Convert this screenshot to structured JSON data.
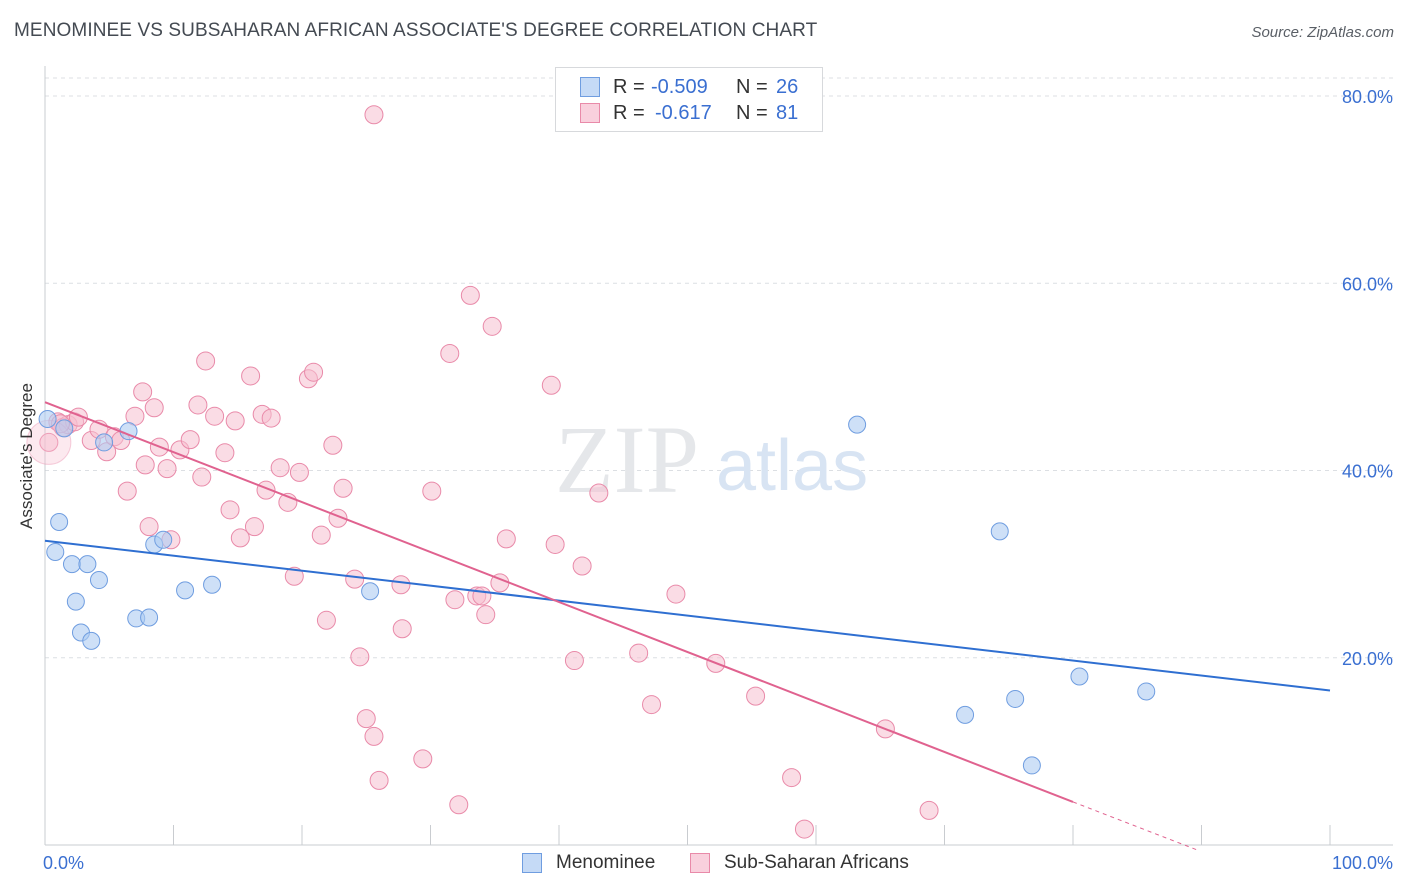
{
  "title": "MENOMINEE VS SUBSAHARAN AFRICAN ASSOCIATE'S DEGREE CORRELATION CHART",
  "source": "Source: ZipAtlas.com",
  "watermark": {
    "zip": "ZIP",
    "atlas": "atlas"
  },
  "legend": {
    "rows": [
      {
        "r_label": "R =",
        "r_value": "-0.509",
        "n_label": "N =",
        "n_value": "26"
      },
      {
        "r_label": "R =",
        "r_value": "-0.617",
        "n_label": "N =",
        "n_value": "81"
      }
    ]
  },
  "bottom_legend": {
    "series1": "Menominee",
    "series2": "Sub-Saharan Africans"
  },
  "colors": {
    "blue_fill": "#aecbf2",
    "blue_stroke": "#6f9de0",
    "blue_line": "#2f6fd1",
    "pink_fill": "#f6bfd0",
    "pink_stroke": "#e98aa9",
    "pink_line": "#e0628f",
    "axis_label": "#3a6fd1",
    "grid": "#dcdfe3"
  },
  "chart_data": {
    "type": "scatter",
    "title": "MENOMINEE VS SUBSAHARAN AFRICAN ASSOCIATE'S DEGREE CORRELATION CHART",
    "xlabel": "",
    "ylabel": "Associate's Degree",
    "xlim": [
      0,
      100
    ],
    "ylim": [
      0,
      80
    ],
    "x_tick_labels": [
      "0.0%",
      "100.0%"
    ],
    "y_tick_labels": [
      "20.0%",
      "40.0%",
      "60.0%",
      "80.0%"
    ],
    "y_ticks": [
      20,
      40,
      60,
      80
    ],
    "grid": true,
    "legend_position": "top-center",
    "series": [
      {
        "name": "Menominee",
        "color": "#2f6fd1",
        "trend": {
          "x": [
            0,
            100
          ],
          "y": [
            32.5,
            16.5
          ]
        },
        "points": [
          [
            0.2,
            45.5
          ],
          [
            0.8,
            31.3
          ],
          [
            1.1,
            34.5
          ],
          [
            2.1,
            30.0
          ],
          [
            2.4,
            26.0
          ],
          [
            2.8,
            22.7
          ],
          [
            3.3,
            30.0
          ],
          [
            3.6,
            21.8
          ],
          [
            4.2,
            28.3
          ],
          [
            4.6,
            43.0
          ],
          [
            6.5,
            44.2
          ],
          [
            7.1,
            24.2
          ],
          [
            8.1,
            24.3
          ],
          [
            8.5,
            32.1
          ],
          [
            9.2,
            32.6
          ],
          [
            10.9,
            27.2
          ],
          [
            13.0,
            27.8
          ],
          [
            25.3,
            27.1
          ],
          [
            63.2,
            44.9
          ],
          [
            71.6,
            13.9
          ],
          [
            74.3,
            33.5
          ],
          [
            75.5,
            15.6
          ],
          [
            76.8,
            8.5
          ],
          [
            80.5,
            18.0
          ],
          [
            85.7,
            16.4
          ],
          [
            1.5,
            44.5
          ]
        ]
      },
      {
        "name": "Sub-Saharan Africans",
        "color": "#e0628f",
        "trend": {
          "x": [
            0,
            80
          ],
          "y": [
            47.3,
            4.6
          ]
        },
        "trend_dashed": {
          "x": [
            80,
            89.8
          ],
          "y": [
            4.6,
            -0.6
          ]
        },
        "points": [
          [
            0.3,
            43.0
          ],
          [
            1.0,
            45.2
          ],
          [
            1.4,
            44.6
          ],
          [
            1.8,
            44.9
          ],
          [
            2.3,
            45.2
          ],
          [
            2.6,
            45.7
          ],
          [
            3.6,
            43.2
          ],
          [
            4.2,
            44.4
          ],
          [
            4.8,
            42.0
          ],
          [
            5.4,
            43.6
          ],
          [
            5.9,
            43.2
          ],
          [
            6.4,
            37.8
          ],
          [
            7.0,
            45.8
          ],
          [
            7.6,
            48.4
          ],
          [
            7.8,
            40.6
          ],
          [
            8.1,
            34.0
          ],
          [
            8.5,
            46.7
          ],
          [
            8.9,
            42.5
          ],
          [
            9.5,
            40.2
          ],
          [
            9.8,
            32.6
          ],
          [
            10.5,
            42.2
          ],
          [
            11.3,
            43.3
          ],
          [
            11.9,
            47.0
          ],
          [
            12.2,
            39.3
          ],
          [
            12.5,
            51.7
          ],
          [
            13.2,
            45.8
          ],
          [
            14.0,
            41.9
          ],
          [
            14.4,
            35.8
          ],
          [
            14.8,
            45.3
          ],
          [
            15.2,
            32.8
          ],
          [
            16.0,
            50.1
          ],
          [
            16.3,
            34.0
          ],
          [
            16.9,
            46.0
          ],
          [
            17.2,
            37.9
          ],
          [
            17.6,
            45.6
          ],
          [
            18.3,
            40.3
          ],
          [
            18.9,
            36.6
          ],
          [
            19.4,
            28.7
          ],
          [
            19.8,
            39.8
          ],
          [
            20.5,
            49.8
          ],
          [
            20.9,
            50.5
          ],
          [
            21.5,
            33.1
          ],
          [
            21.9,
            24.0
          ],
          [
            22.4,
            42.7
          ],
          [
            22.8,
            34.9
          ],
          [
            23.2,
            38.1
          ],
          [
            24.1,
            28.4
          ],
          [
            24.5,
            20.1
          ],
          [
            25.0,
            13.5
          ],
          [
            25.6,
            11.6
          ],
          [
            26.0,
            6.9
          ],
          [
            25.6,
            78.0
          ],
          [
            27.7,
            27.8
          ],
          [
            27.8,
            23.1
          ],
          [
            29.4,
            9.2
          ],
          [
            30.1,
            37.8
          ],
          [
            31.5,
            52.5
          ],
          [
            31.9,
            26.2
          ],
          [
            32.2,
            4.3
          ],
          [
            33.1,
            58.7
          ],
          [
            33.6,
            26.6
          ],
          [
            34.0,
            26.6
          ],
          [
            34.3,
            24.6
          ],
          [
            34.8,
            55.4
          ],
          [
            35.4,
            28.0
          ],
          [
            35.9,
            32.7
          ],
          [
            39.4,
            49.1
          ],
          [
            39.7,
            32.1
          ],
          [
            41.2,
            19.7
          ],
          [
            41.8,
            29.8
          ],
          [
            43.1,
            37.6
          ],
          [
            46.2,
            20.5
          ],
          [
            47.2,
            15.0
          ],
          [
            49.1,
            26.8
          ],
          [
            52.2,
            19.4
          ],
          [
            55.3,
            15.9
          ],
          [
            58.1,
            7.2
          ],
          [
            59.1,
            1.7
          ],
          [
            65.4,
            12.4
          ],
          [
            68.8,
            3.7
          ],
          [
            1.2,
            45.0
          ]
        ]
      }
    ]
  }
}
